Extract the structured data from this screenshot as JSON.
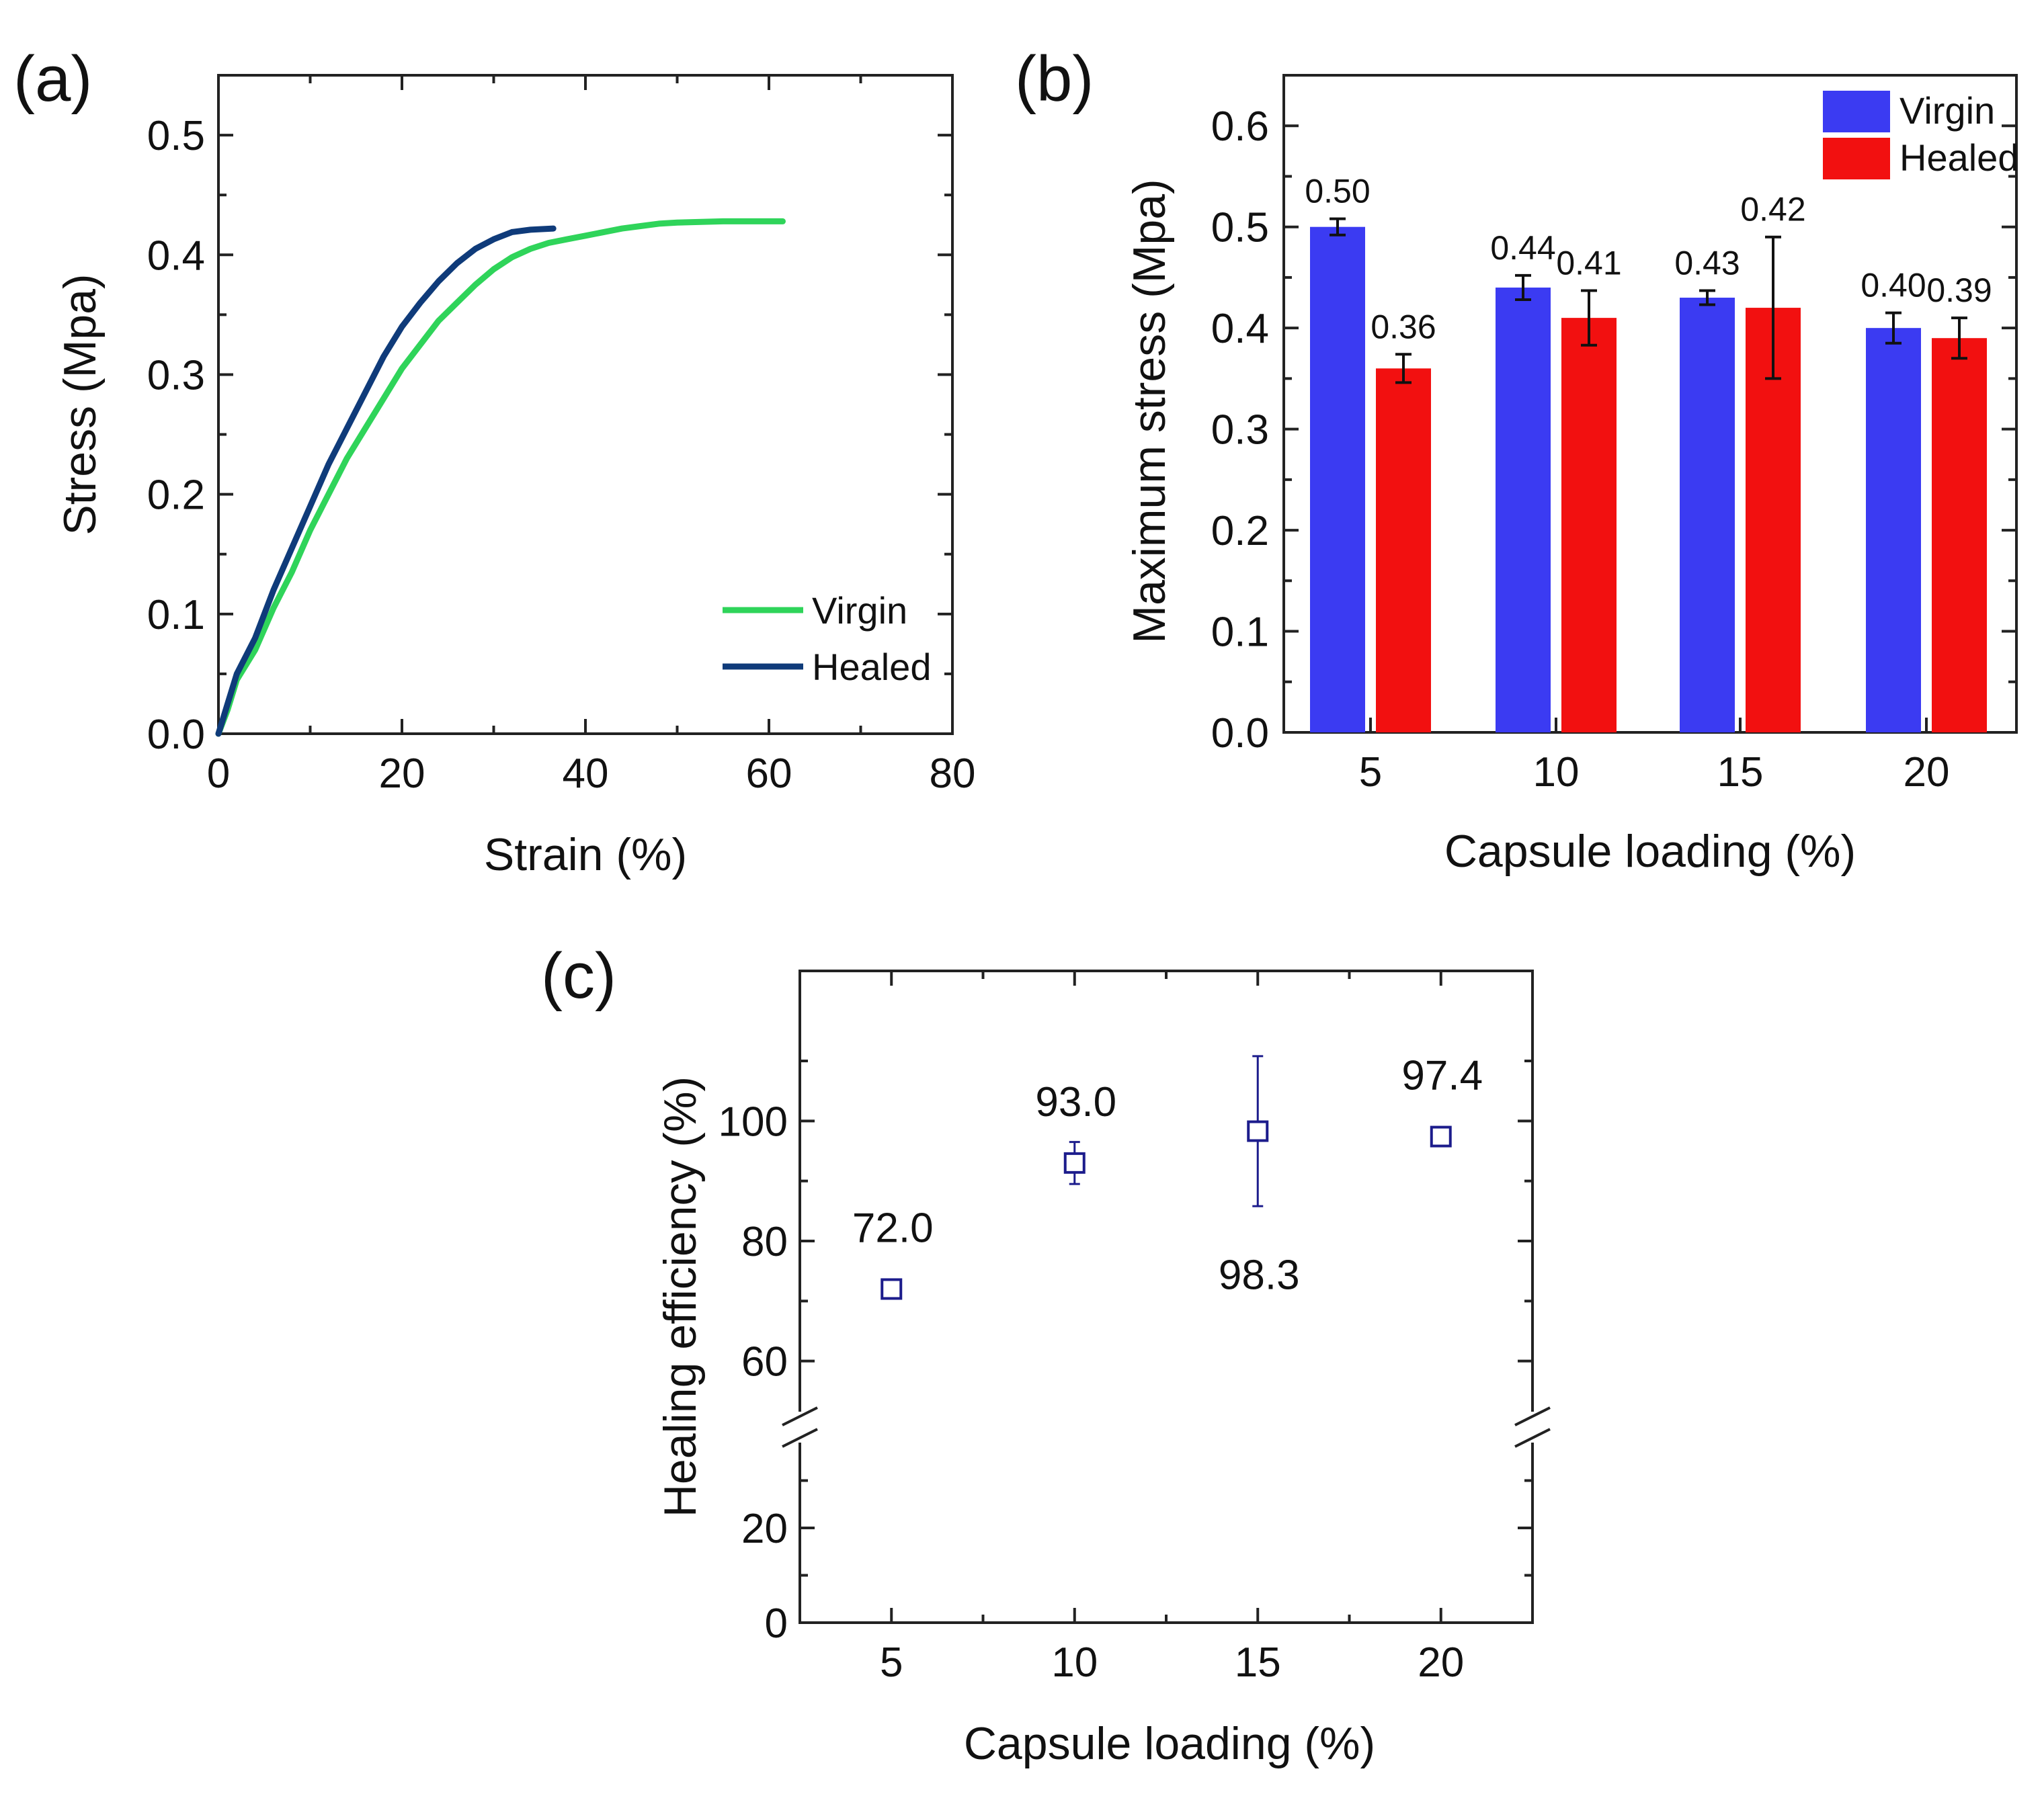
{
  "figure": {
    "panel_labels": [
      "(a)",
      "(b)",
      "(c)"
    ]
  },
  "colors": {
    "virgin_curve": "#2fd45a",
    "healed_curve": "#0f3b7a",
    "virgin_bar": "#3b3bf2",
    "healed_bar": "#f21010",
    "marker": "#1c1c8c",
    "axis": "#222222"
  },
  "chart_data": [
    {
      "panel": "(a)",
      "type": "line",
      "xlabel": "Strain (%)",
      "ylabel": "Stress (Mpa)",
      "xlim": [
        0,
        80
      ],
      "ylim": [
        0,
        0.55
      ],
      "xticks": [
        0,
        20,
        40,
        60,
        80
      ],
      "yticks": [
        0.0,
        0.1,
        0.2,
        0.3,
        0.4,
        0.5
      ],
      "xtick_labels": [
        "0",
        "20",
        "40",
        "60",
        "80"
      ],
      "ytick_labels": [
        "0.0",
        "0.1",
        "0.2",
        "0.3",
        "0.4",
        "0.5"
      ],
      "legend": {
        "position": "bottom-right",
        "entries": [
          "Virgin",
          "Healed"
        ]
      },
      "series": [
        {
          "name": "Virgin",
          "x": [
            0,
            1,
            2,
            4,
            6,
            8,
            10,
            12,
            14,
            16,
            18,
            20,
            22,
            24,
            26,
            28,
            30,
            32,
            34,
            36,
            38,
            40,
            42,
            44,
            46,
            48,
            50,
            55,
            61.5
          ],
          "y": [
            0,
            0.02,
            0.045,
            0.07,
            0.105,
            0.135,
            0.17,
            0.2,
            0.23,
            0.255,
            0.28,
            0.305,
            0.325,
            0.345,
            0.36,
            0.375,
            0.388,
            0.398,
            0.405,
            0.41,
            0.413,
            0.416,
            0.419,
            0.422,
            0.424,
            0.426,
            0.427,
            0.428,
            0.428
          ]
        },
        {
          "name": "Healed",
          "x": [
            0,
            1,
            2,
            4,
            6,
            8,
            10,
            12,
            14,
            16,
            18,
            20,
            22,
            24,
            26,
            28,
            30,
            32,
            34,
            36.5
          ],
          "y": [
            0,
            0.025,
            0.05,
            0.08,
            0.12,
            0.155,
            0.19,
            0.225,
            0.255,
            0.285,
            0.315,
            0.34,
            0.36,
            0.378,
            0.393,
            0.405,
            0.413,
            0.419,
            0.421,
            0.422
          ]
        }
      ]
    },
    {
      "panel": "(b)",
      "type": "bar",
      "xlabel": "Capsule loading (%)",
      "ylabel": "Maximum stress (Mpa)",
      "categories": [
        "5",
        "10",
        "15",
        "20"
      ],
      "ylim": [
        0,
        0.65
      ],
      "yticks": [
        0.0,
        0.1,
        0.2,
        0.3,
        0.4,
        0.5,
        0.6
      ],
      "ytick_labels": [
        "0.0",
        "0.1",
        "0.2",
        "0.3",
        "0.4",
        "0.5",
        "0.6"
      ],
      "legend": {
        "position": "top-right",
        "entries": [
          "Virgin",
          "Healed"
        ]
      },
      "series": [
        {
          "name": "Virgin",
          "values": [
            0.5,
            0.44,
            0.43,
            0.4
          ],
          "errors": [
            0.008,
            0.012,
            0.007,
            0.015
          ],
          "labels": [
            "0.50",
            "0.44",
            "0.43",
            "0.40"
          ]
        },
        {
          "name": "Healed",
          "values": [
            0.36,
            0.41,
            0.42,
            0.39
          ],
          "errors": [
            0.014,
            0.027,
            0.07,
            0.02
          ],
          "labels": [
            "0.36",
            "0.41",
            "0.42",
            "0.39"
          ]
        }
      ]
    },
    {
      "panel": "(c)",
      "type": "scatter",
      "xlabel": "Capsule loading (%)",
      "ylabel": "Healing efficiency (%)",
      "xlim": [
        2.5,
        22.5
      ],
      "xticks": [
        5,
        10,
        15,
        20
      ],
      "xtick_labels": [
        "5",
        "10",
        "15",
        "20"
      ],
      "ytick_labels": [
        "0",
        "20",
        "60",
        "80",
        "100"
      ],
      "broken_axis": {
        "lower_range": [
          0,
          40
        ],
        "upper_range": [
          50,
          125
        ]
      },
      "series": [
        {
          "name": "Healing efficiency",
          "x": [
            5,
            10,
            15,
            20
          ],
          "y": [
            72.0,
            93.0,
            98.3,
            97.4
          ],
          "errors": [
            1.5,
            3.5,
            12.5,
            1.5
          ],
          "labels": [
            "72.0",
            "93.0",
            "98.3",
            "97.4"
          ]
        }
      ]
    }
  ]
}
